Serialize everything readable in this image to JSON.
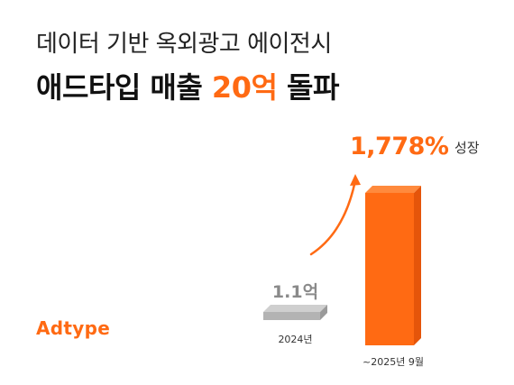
{
  "header": {
    "subtitle": "데이터 기반 옥외광고 에이전시",
    "title_prefix": "애드타입 매출 ",
    "title_highlight": "20억",
    "title_suffix": " 돌파"
  },
  "brand": {
    "logo_text": "Adtype"
  },
  "colors": {
    "accent": "#ff6a13",
    "bar_2024": "#b3b3b3",
    "bar_2025": "#ff6a13",
    "text_dark": "#111111",
    "value_gray": "#8a8a8a"
  },
  "chart_data": {
    "type": "bar",
    "categories": [
      "2024년",
      "~2025년 9월"
    ],
    "values": [
      1.1,
      20.66
    ],
    "value_labels": [
      "1.1억",
      ""
    ],
    "growth_label": "1,778%",
    "growth_suffix": "성장",
    "ylim": [
      0,
      22
    ],
    "title": "",
    "xlabel": "",
    "ylabel": "",
    "grid": false,
    "legend": "none"
  }
}
